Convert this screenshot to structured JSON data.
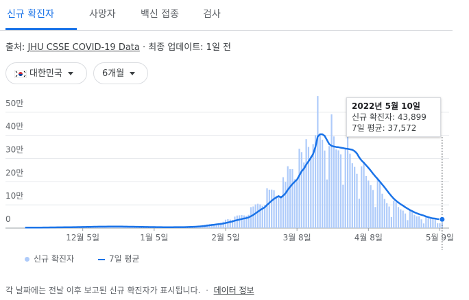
{
  "tabs": [
    "신규 확진자",
    "사망자",
    "백신 접종",
    "검사"
  ],
  "source": {
    "prefix": "출처:",
    "link": "JHU CSSE COVID-19 Data",
    "updated": "· 최종 업데이트: 1일 전"
  },
  "filters": [
    "대한민국",
    "6개월"
  ],
  "footer": {
    "note": "각 날짜에는 전날 이후 보고된 신규 확진자가 표시됩니다.",
    "separator": "·",
    "link": "데이터 정보"
  },
  "tooltip": {
    "date": "2022년 5월 10일",
    "lines": [
      "신규 확진자: 43,899",
      "7일 평균: 37,572"
    ]
  },
  "chart_data": {
    "type": "bar",
    "categories": [
      null,
      null,
      null,
      null,
      null,
      null,
      null,
      null,
      null,
      null,
      null,
      null,
      null,
      null,
      null,
      null,
      null,
      null,
      null,
      null,
      null,
      null,
      null,
      null,
      null,
      "12월 5일",
      null,
      null,
      null,
      null,
      null,
      null,
      null,
      null,
      null,
      null,
      null,
      null,
      null,
      null,
      null,
      null,
      null,
      null,
      null,
      null,
      null,
      null,
      null,
      null,
      null,
      null,
      null,
      null,
      null,
      null,
      "1월 5일",
      null,
      null,
      null,
      null,
      null,
      null,
      null,
      null,
      null,
      null,
      null,
      null,
      null,
      null,
      null,
      null,
      null,
      null,
      null,
      null,
      null,
      null,
      null,
      null,
      null,
      null,
      null,
      null,
      null,
      null,
      "2월 5일",
      null,
      null,
      null,
      null,
      null,
      null,
      null,
      null,
      null,
      null,
      null,
      null,
      null,
      null,
      null,
      null,
      null,
      null,
      null,
      null,
      null,
      null,
      null,
      null,
      null,
      null,
      null,
      null,
      null,
      null,
      "3월 8일",
      null,
      null,
      null,
      null,
      null,
      null,
      null,
      null,
      null,
      null,
      null,
      null,
      null,
      null,
      null,
      null,
      null,
      null,
      null,
      null,
      null,
      null,
      null,
      null,
      null,
      null,
      null,
      null,
      null,
      null,
      "4월 8일",
      null,
      null,
      null,
      null,
      null,
      null,
      null,
      null,
      null,
      null,
      null,
      null,
      null,
      null,
      null,
      null,
      null,
      null,
      null,
      null,
      null,
      null,
      null,
      null,
      null,
      null,
      null,
      null,
      null,
      null,
      "5월 9일",
      null
    ],
    "series": [
      {
        "name": "신규 확진자",
        "type": "bar",
        "color": "#aecbfa",
        "values": [
          2400,
          2500,
          2400,
          2400,
          2400,
          2000,
          2100,
          3200,
          3300,
          3000,
          3200,
          2800,
          2700,
          4100,
          4100,
          4000,
          3900,
          3300,
          3000,
          3000,
          5100,
          5300,
          5200,
          5300,
          5100,
          5100,
          4300,
          4900,
          7000,
          7100,
          7000,
          6900,
          6600,
          5800,
          5500,
          7800,
          7600,
          7400,
          7300,
          6200,
          5300,
          5200,
          7400,
          6900,
          6200,
          5800,
          5400,
          4200,
          3800,
          5400,
          5000,
          4800,
          4400,
          3800,
          3000,
          4200,
          4400,
          4100,
          3700,
          3500,
          3400,
          3000,
          4400,
          4200,
          4100,
          4500,
          4300,
          4200,
          3900,
          4000,
          5800,
          6600,
          6800,
          7000,
          7600,
          7500,
          8500,
          13000,
          14500,
          16100,
          17500,
          17500,
          17000,
          18300,
          20200,
          22900,
          27400,
          36300,
          38700,
          36700,
          35300,
          49500,
          54100,
          54900,
          56400,
          54600,
          53000,
          57200,
          90400,
          93100,
          102200,
          104800,
          102200,
          95400,
          99500,
          171400,
          165800,
          166200,
          163500,
          139600,
          139500,
          138900,
          219200,
          198800,
          266800,
          254300,
          254300,
          210700,
          202700,
          342400,
          327500,
          282900,
          383600,
          350100,
          309700,
          362300,
          400600,
          570000,
          407000,
          381400,
          334700,
          209200,
          353900,
          490800,
          395500,
          339500,
          335600,
          318100,
          187200,
          347500,
          424600,
          320700,
          280200,
          264200,
          234300,
          127000,
          266100,
          286300,
          224800,
          205300,
          185500,
          164400,
          90900,
          210700,
          195400,
          148400,
          125800,
          107900,
          93000,
          47700,
          118500,
          111300,
          90800,
          81000,
          75400,
          63000,
          34300,
          76800,
          68500,
          57400,
          50600,
          51000,
          37700,
          20000,
          51100,
          42300,
          39600,
          41000,
          40100,
          20600,
          20600,
          43899
        ]
      },
      {
        "name": "7일 평균",
        "type": "line",
        "color": "#1a73e8",
        "values": [
          2300,
          2300,
          2350,
          2400,
          2400,
          2350,
          2300,
          2400,
          2550,
          2650,
          2750,
          2850,
          2950,
          3050,
          3200,
          3350,
          3500,
          3550,
          3600,
          3600,
          3750,
          3900,
          4050,
          4250,
          4450,
          4650,
          4800,
          5050,
          5300,
          5550,
          5800,
          6050,
          6250,
          6350,
          6350,
          6450,
          6550,
          6600,
          6650,
          6700,
          6650,
          6550,
          6500,
          6400,
          6200,
          6000,
          5900,
          5750,
          5550,
          5400,
          5250,
          5100,
          4900,
          4700,
          4550,
          4450,
          4350,
          4200,
          4100,
          3950,
          3800,
          3700,
          3700,
          3800,
          3850,
          3950,
          4050,
          4100,
          4100,
          4050,
          4300,
          4650,
          5050,
          5500,
          6000,
          6700,
          7300,
          8300,
          9400,
          10600,
          11800,
          13200,
          14500,
          15800,
          17000,
          18300,
          19500,
          22000,
          24000,
          26500,
          28700,
          31900,
          34400,
          36800,
          39000,
          41500,
          43000,
          46000,
          51200,
          56800,
          63500,
          70400,
          77700,
          83800,
          89600,
          100000,
          109000,
          118000,
          126000,
          132000,
          138000,
          132000,
          140000,
          150000,
          165000,
          178000,
          190000,
          200000,
          209000,
          227000,
          245000,
          256000,
          274000,
          288000,
          303000,
          320000,
          350000,
          395000,
          405000,
          405000,
          398000,
          380000,
          362000,
          355000,
          352000,
          350000,
          349000,
          347000,
          345000,
          343000,
          342000,
          340000,
          338000,
          332000,
          322000,
          305000,
          292000,
          282000,
          271000,
          260000,
          248000,
          235000,
          223000,
          212000,
          200000,
          188000,
          176000,
          163000,
          150000,
          138000,
          127000,
          118000,
          110000,
          103000,
          97000,
          90000,
          84000,
          78000,
          73000,
          68000,
          64000,
          60000,
          57000,
          54000,
          50000,
          47000,
          44000,
          42000,
          41000,
          39000,
          38000,
          37572
        ]
      }
    ],
    "ylim": [
      0,
      600000
    ],
    "yticks": [
      0,
      {
        "value": 100000,
        "label": "10만"
      },
      {
        "value": 200000,
        "label": "20만"
      },
      {
        "value": 300000,
        "label": "30만"
      },
      {
        "value": 400000,
        "label": "40만"
      },
      {
        "value": 500000,
        "label": "50만"
      }
    ],
    "grid": true
  }
}
